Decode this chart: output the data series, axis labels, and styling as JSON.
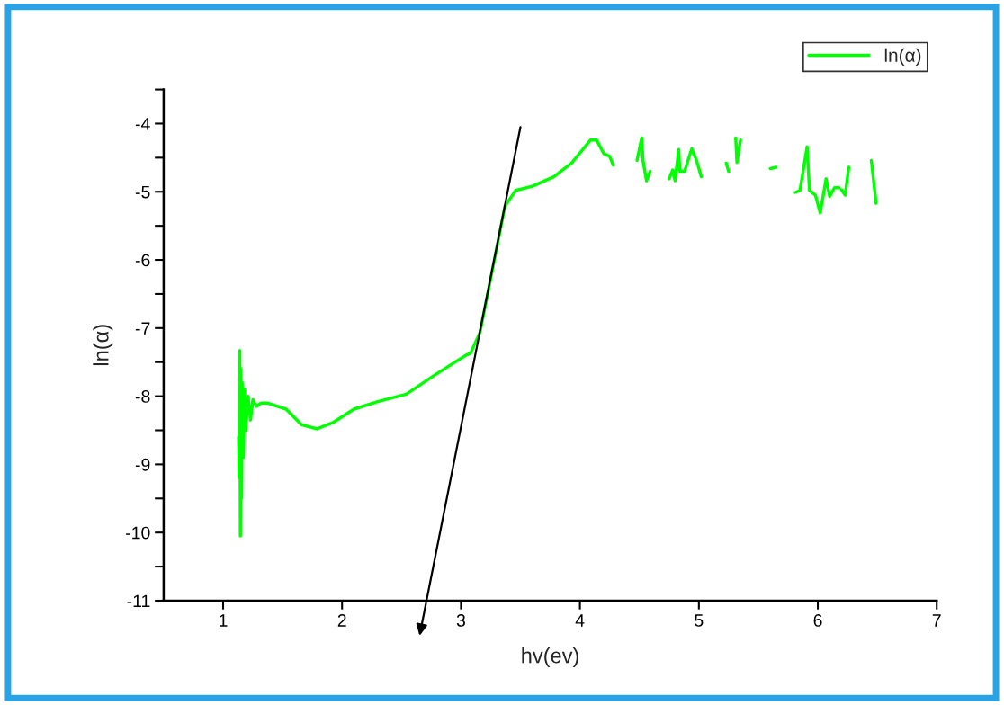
{
  "chart_data": {
    "type": "line",
    "xlabel": "hv(ev)",
    "ylabel": "ln(α)",
    "xlim": [
      0.5,
      7
    ],
    "xticks": [
      1,
      2,
      3,
      4,
      5,
      6,
      7
    ],
    "ylim": [
      -11,
      -3.5
    ],
    "yticks": [
      -11,
      {
        "value": -10.5,
        "label": null
      },
      -10,
      {
        "value": -9.5,
        "label": null
      },
      -9,
      {
        "value": -8.5,
        "label": null
      },
      -8,
      {
        "value": -7.5,
        "label": null
      },
      -7,
      {
        "value": -6.5,
        "label": null
      },
      -6,
      {
        "value": -5.5,
        "label": null
      },
      -5,
      {
        "value": -4.5,
        "label": null
      },
      -4,
      {
        "value": -3.5,
        "label": null
      }
    ],
    "legend": "top right",
    "grid": false,
    "line_style": "solid",
    "marker": "none",
    "series": [
      {
        "name": "ln(α)",
        "color": "#00ff00",
        "x": [
          1.13,
          1.135,
          1.14,
          1.145,
          1.15,
          1.155,
          1.16,
          1.17,
          1.18,
          1.19,
          1.21,
          1.23,
          1.25,
          1.28,
          1.32,
          1.37,
          1.53,
          1.66,
          1.79,
          1.92,
          2.1,
          2.3,
          2.54,
          2.77,
          3.04,
          3.08,
          3.16,
          3.24,
          3.31,
          3.37,
          3.46,
          3.6,
          3.78,
          3.93,
          4.09,
          4.14,
          4.2,
          4.25,
          4.28,
          4.38,
          4.48,
          4.52,
          4.53,
          4.56,
          4.59,
          4.67,
          4.75,
          4.78,
          4.8,
          4.83,
          4.84,
          4.88,
          4.94,
          4.98,
          5.02,
          5.12,
          5.23,
          5.25,
          5.28,
          5.31,
          5.32,
          5.35,
          5.48,
          5.6,
          5.65,
          5.73,
          5.81,
          5.85,
          5.91,
          5.93,
          5.98,
          6.02,
          6.07,
          6.1,
          6.14,
          6.18,
          6.19,
          6.2,
          6.23,
          6.26,
          6.35,
          6.45,
          6.49
        ],
        "values": [
          -8.6,
          -9.2,
          -7.33,
          -10.05,
          -7.6,
          -9.5,
          -7.8,
          -8.9,
          -7.9,
          -8.5,
          -8.0,
          -8.35,
          -8.05,
          -8.15,
          -8.1,
          -8.1,
          -8.19,
          -8.42,
          -8.48,
          -8.39,
          -8.19,
          -8.08,
          -7.97,
          -7.7,
          -7.4,
          -7.37,
          -7.06,
          -6.36,
          -5.74,
          -5.21,
          -4.98,
          -4.92,
          -4.78,
          -4.58,
          -4.24,
          -4.24,
          -4.44,
          -4.48,
          -4.61,
          null,
          -4.54,
          -4.21,
          -4.54,
          -4.84,
          -4.7,
          null,
          -4.81,
          -4.68,
          -4.84,
          -4.38,
          -4.7,
          -4.7,
          -4.37,
          -4.54,
          -4.78,
          null,
          -4.58,
          -4.7,
          null,
          -4.21,
          -4.57,
          -4.24,
          null,
          -4.66,
          -4.64,
          null,
          -5.01,
          -4.98,
          -4.34,
          -4.98,
          -5.05,
          -5.31,
          -4.81,
          -5.07,
          -4.94,
          -4.94,
          null,
          -4.97,
          -5.05,
          -4.64,
          null,
          -4.54,
          -5.17
        ]
      },
      {
        "type": "line",
        "color": "#000000",
        "x": [
          2.71,
          3.5
        ],
        "values": [
          -11,
          -4.05
        ]
      }
    ]
  }
}
